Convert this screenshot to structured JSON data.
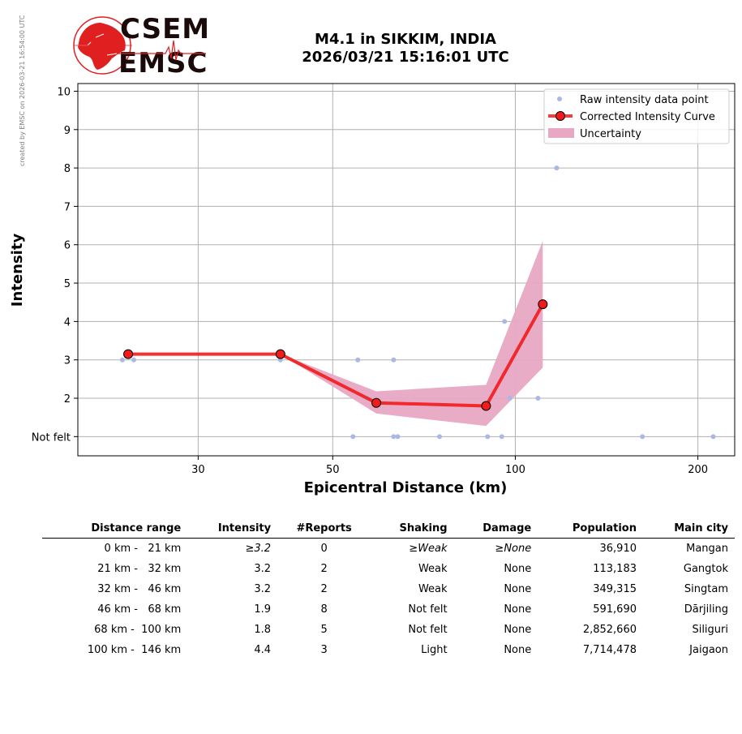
{
  "watermark": "created by EMSC on 2026-03-21 16:54:00 UTC",
  "logo": {
    "line1": "CSEM",
    "line2": "EMSC"
  },
  "title": {
    "line1": "M4.1 in SIKKIM, INDIA",
    "line2": "2026/03/21 15:16:01 UTC"
  },
  "colors": {
    "raw": "#aab8e6",
    "curve": "#f21b1b",
    "marker": "#f21b1b",
    "uncertainty": "#e8a8c4",
    "grid": "#b0b0b0"
  },
  "chart_data": {
    "type": "line",
    "xlabel": "Epicentral Distance (km)",
    "ylabel": "Intensity",
    "x_scale": "log",
    "xlim": [
      19,
      230
    ],
    "ylim": [
      0.5,
      10.2
    ],
    "x_ticks": [
      30,
      50,
      100,
      200
    ],
    "y_ticks": [
      {
        "value": 1,
        "label": "Not felt"
      },
      {
        "value": 2,
        "label": "2"
      },
      {
        "value": 3,
        "label": "3"
      },
      {
        "value": 4,
        "label": "4"
      },
      {
        "value": 5,
        "label": "5"
      },
      {
        "value": 6,
        "label": "6"
      },
      {
        "value": 7,
        "label": "7"
      },
      {
        "value": 8,
        "label": "8"
      },
      {
        "value": 9,
        "label": "9"
      },
      {
        "value": 10,
        "label": "10"
      }
    ],
    "grid": true,
    "legend_position": "top-right",
    "legend": [
      "Raw intensity data point",
      "Corrected Intensity Curve",
      "Uncertainty"
    ],
    "raw_points": [
      {
        "x": 22.5,
        "y": 3
      },
      {
        "x": 23.5,
        "y": 3
      },
      {
        "x": 41,
        "y": 3
      },
      {
        "x": 54,
        "y": 1
      },
      {
        "x": 55,
        "y": 3
      },
      {
        "x": 57,
        "y": 2
      },
      {
        "x": 63,
        "y": 3
      },
      {
        "x": 63,
        "y": 1
      },
      {
        "x": 64,
        "y": 1
      },
      {
        "x": 75,
        "y": 1
      },
      {
        "x": 90,
        "y": 1
      },
      {
        "x": 95,
        "y": 1
      },
      {
        "x": 96,
        "y": 4
      },
      {
        "x": 98,
        "y": 2
      },
      {
        "x": 109,
        "y": 2
      },
      {
        "x": 117,
        "y": 8
      },
      {
        "x": 162,
        "y": 1
      },
      {
        "x": 212,
        "y": 1
      }
    ],
    "curve": [
      {
        "x": 23,
        "y": 3.15
      },
      {
        "x": 41,
        "y": 3.15
      },
      {
        "x": 59,
        "y": 1.88
      },
      {
        "x": 89.5,
        "y": 1.8
      },
      {
        "x": 111,
        "y": 4.45
      }
    ],
    "uncertainty": {
      "x": [
        41,
        59,
        89.5,
        111
      ],
      "upper": [
        3.15,
        2.18,
        2.35,
        6.1
      ],
      "lower": [
        3.15,
        1.6,
        1.28,
        2.8
      ]
    }
  },
  "table": {
    "headers": [
      "Distance range",
      "Intensity",
      "#Reports",
      "Shaking",
      "Damage",
      "Population",
      "Main city"
    ],
    "rows": [
      {
        "range": "0 km -   21 km",
        "intensity_prefix": "≥",
        "intensity": "3.2",
        "reports": "0",
        "shaking_prefix": "≥",
        "shaking": "Weak",
        "damage_prefix": "≥",
        "damage": "None",
        "population": "36,910",
        "city": "Mangan"
      },
      {
        "range": "21 km -   32 km",
        "intensity_prefix": "",
        "intensity": "3.2",
        "reports": "2",
        "shaking_prefix": "",
        "shaking": "Weak",
        "damage_prefix": "",
        "damage": "None",
        "population": "113,183",
        "city": "Gangtok"
      },
      {
        "range": "32 km -   46 km",
        "intensity_prefix": "",
        "intensity": "3.2",
        "reports": "2",
        "shaking_prefix": "",
        "shaking": "Weak",
        "damage_prefix": "",
        "damage": "None",
        "population": "349,315",
        "city": "Singtam"
      },
      {
        "range": "46 km -   68 km",
        "intensity_prefix": "",
        "intensity": "1.9",
        "reports": "8",
        "shaking_prefix": "",
        "shaking": "Not felt",
        "damage_prefix": "",
        "damage": "None",
        "population": "591,690",
        "city": "Dārjiling"
      },
      {
        "range": "68 km -  100 km",
        "intensity_prefix": "",
        "intensity": "1.8",
        "reports": "5",
        "shaking_prefix": "",
        "shaking": "Not felt",
        "damage_prefix": "",
        "damage": "None",
        "population": "2,852,660",
        "city": "Siliguri"
      },
      {
        "range": "100 km -  146 km",
        "intensity_prefix": "",
        "intensity": "4.4",
        "reports": "3",
        "shaking_prefix": "",
        "shaking": "Light",
        "damage_prefix": "",
        "damage": "None",
        "population": "7,714,478",
        "city": "Jaigaon"
      }
    ]
  }
}
